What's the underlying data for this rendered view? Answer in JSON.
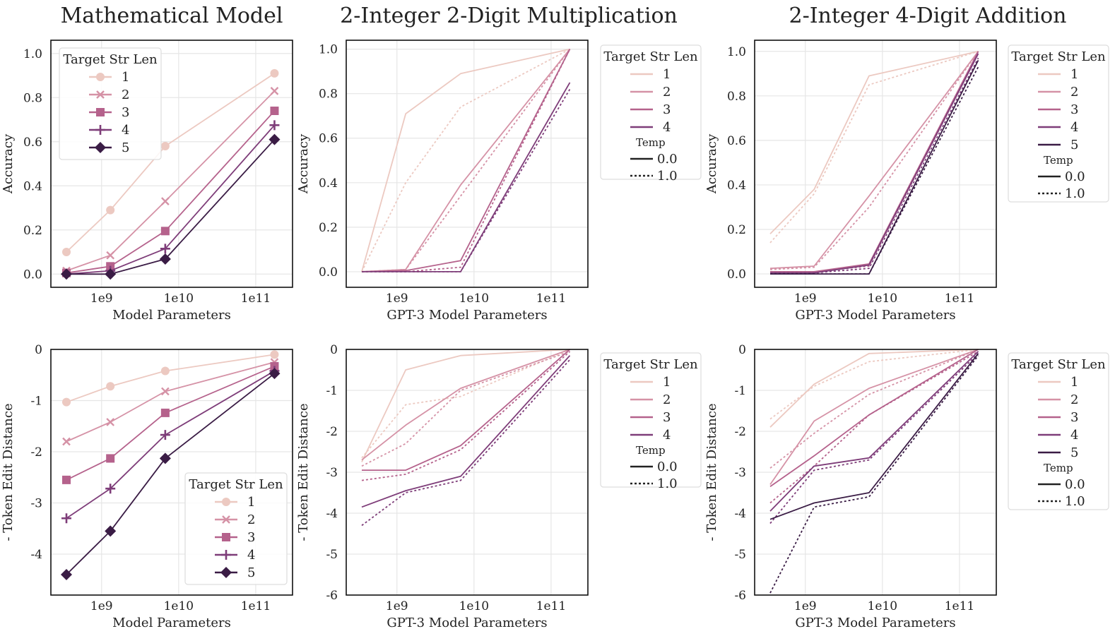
{
  "colors": {
    "len1": "#ecc9c1",
    "len2": "#d592a6",
    "len3": "#b5628c",
    "len4": "#7e3d79",
    "len5": "#3a1c45",
    "grid": "#e6e6e6",
    "axis": "#111111"
  },
  "column_titles": [
    "Mathematical Model",
    "2-Integer 2-Digit Multiplication",
    "2-Integer 4-Digit Addition"
  ],
  "chart_data": [
    {
      "id": "math-accuracy",
      "type": "line",
      "xscale": "log",
      "xlabel": "Model Parameters",
      "ylabel": "Accuracy",
      "xlim": [
        220000000.0,
        300000000000.0
      ],
      "ylim": [
        -0.06,
        1.06
      ],
      "xticks": [
        "1e9",
        "1e10",
        "1e11"
      ],
      "yticks": [
        "0.0",
        "0.2",
        "0.4",
        "0.6",
        "0.8",
        "1.0"
      ],
      "markers": true,
      "legend": {
        "title": "Target Str Len",
        "position": "upper-left",
        "entries": [
          "1",
          "2",
          "3",
          "4",
          "5"
        ]
      },
      "x": [
        350000000.0,
        1300000000.0,
        6700000000.0,
        175000000000.0
      ],
      "series": [
        {
          "name": "1",
          "marker": "circle",
          "values": [
            0.1,
            0.29,
            0.58,
            0.91
          ]
        },
        {
          "name": "2",
          "marker": "x",
          "values": [
            0.015,
            0.085,
            0.33,
            0.83
          ]
        },
        {
          "name": "3",
          "marker": "square",
          "values": [
            0.005,
            0.035,
            0.195,
            0.74
          ]
        },
        {
          "name": "4",
          "marker": "plus",
          "values": [
            0.0,
            0.015,
            0.115,
            0.675
          ]
        },
        {
          "name": "5",
          "marker": "diamond",
          "values": [
            0.0,
            0.0,
            0.068,
            0.61
          ]
        }
      ]
    },
    {
      "id": "mult-accuracy",
      "type": "line",
      "xscale": "log",
      "xlabel": "GPT-3 Model Parameters",
      "ylabel": "Accuracy",
      "xlim": [
        220000000.0,
        300000000000.0
      ],
      "ylim": [
        -0.07,
        1.04
      ],
      "xticks": [
        "1e9",
        "1e10",
        "1e11"
      ],
      "yticks": [
        "0.0",
        "0.2",
        "0.4",
        "0.6",
        "0.8",
        "1.0"
      ],
      "legend": {
        "title": "Target Str Len",
        "position": "outside-right",
        "entries": [
          "1",
          "2",
          "3",
          "4"
        ],
        "temp_title": "Temp",
        "temp_entries": [
          "0.0",
          "1.0"
        ]
      },
      "x": [
        350000000.0,
        1300000000.0,
        6700000000.0,
        175000000000.0
      ],
      "series": [
        {
          "name": "1",
          "temp": "0.0",
          "values": [
            0.0,
            0.71,
            0.89,
            1.0
          ]
        },
        {
          "name": "1",
          "temp": "1.0",
          "values": [
            0.0,
            0.4,
            0.74,
            1.0
          ]
        },
        {
          "name": "2",
          "temp": "0.0",
          "values": [
            0.0,
            0.01,
            0.39,
            1.0
          ]
        },
        {
          "name": "2",
          "temp": "1.0",
          "values": [
            0.0,
            0.01,
            0.34,
            1.0
          ]
        },
        {
          "name": "3",
          "temp": "0.0",
          "values": [
            0.0,
            0.005,
            0.05,
            1.0
          ]
        },
        {
          "name": "3",
          "temp": "1.0",
          "values": [
            0.0,
            0.0,
            0.02,
            1.0
          ]
        },
        {
          "name": "4",
          "temp": "0.0",
          "values": [
            0.0,
            0.0,
            0.0,
            0.85
          ]
        },
        {
          "name": "4",
          "temp": "1.0",
          "values": [
            0.0,
            0.0,
            0.0,
            0.82
          ]
        }
      ]
    },
    {
      "id": "add-accuracy",
      "type": "line",
      "xscale": "log",
      "xlabel": "GPT-3 Model Parameters",
      "ylabel": "Accuracy",
      "xlim": [
        220000000.0,
        300000000000.0
      ],
      "ylim": [
        -0.06,
        1.05
      ],
      "xticks": [
        "1e9",
        "1e10",
        "1e11"
      ],
      "yticks": [
        "0.0",
        "0.2",
        "0.4",
        "0.6",
        "0.8",
        "1.0"
      ],
      "legend": {
        "title": "Target Str Len",
        "position": "outside-right",
        "entries": [
          "1",
          "2",
          "3",
          "4",
          "5"
        ],
        "temp_title": "Temp",
        "temp_entries": [
          "0.0",
          "1.0"
        ]
      },
      "x": [
        350000000.0,
        1300000000.0,
        6700000000.0,
        175000000000.0
      ],
      "series": [
        {
          "name": "1",
          "temp": "0.0",
          "values": [
            0.18,
            0.38,
            0.89,
            1.0
          ]
        },
        {
          "name": "1",
          "temp": "1.0",
          "values": [
            0.14,
            0.36,
            0.85,
            1.0
          ]
        },
        {
          "name": "2",
          "temp": "0.0",
          "values": [
            0.025,
            0.035,
            0.35,
            1.0
          ]
        },
        {
          "name": "2",
          "temp": "1.0",
          "values": [
            0.02,
            0.03,
            0.3,
            1.0
          ]
        },
        {
          "name": "3",
          "temp": "0.0",
          "values": [
            0.01,
            0.01,
            0.045,
            1.0
          ]
        },
        {
          "name": "3",
          "temp": "1.0",
          "values": [
            0.005,
            0.01,
            0.035,
            0.99
          ]
        },
        {
          "name": "4",
          "temp": "0.0",
          "values": [
            0.005,
            0.005,
            0.04,
            0.99
          ]
        },
        {
          "name": "4",
          "temp": "1.0",
          "values": [
            0.0,
            0.005,
            0.025,
            0.97
          ]
        },
        {
          "name": "5",
          "temp": "0.0",
          "values": [
            0.0,
            0.0,
            0.0,
            0.96
          ]
        },
        {
          "name": "5",
          "temp": "1.0",
          "values": [
            0.0,
            0.0,
            0.0,
            0.93
          ]
        }
      ]
    },
    {
      "id": "math-ted",
      "type": "line",
      "xscale": "log",
      "xlabel": "Model Parameters",
      "ylabel": "- Token Edit Distance",
      "xlim": [
        220000000.0,
        300000000000.0
      ],
      "ylim": [
        -4.8,
        0.0
      ],
      "xticks": [
        "1e9",
        "1e10",
        "1e11"
      ],
      "yticks": [
        "0",
        "-1",
        "-2",
        "-3",
        "-4"
      ],
      "markers": true,
      "legend": {
        "title": "Target Str Len",
        "position": "lower-right",
        "entries": [
          "1",
          "2",
          "3",
          "4",
          "5"
        ]
      },
      "x": [
        350000000.0,
        1300000000.0,
        6700000000.0,
        175000000000.0
      ],
      "series": [
        {
          "name": "1",
          "marker": "circle",
          "values": [
            -1.03,
            -0.72,
            -0.42,
            -0.1
          ]
        },
        {
          "name": "2",
          "marker": "x",
          "values": [
            -1.8,
            -1.42,
            -0.82,
            -0.25
          ]
        },
        {
          "name": "3",
          "marker": "square",
          "values": [
            -2.55,
            -2.13,
            -1.24,
            -0.33
          ]
        },
        {
          "name": "4",
          "marker": "plus",
          "values": [
            -3.3,
            -2.72,
            -1.67,
            -0.42
          ]
        },
        {
          "name": "5",
          "marker": "diamond",
          "values": [
            -4.4,
            -3.55,
            -2.13,
            -0.47
          ]
        }
      ]
    },
    {
      "id": "mult-ted",
      "type": "line",
      "xscale": "log",
      "xlabel": "GPT-3 Model Parameters",
      "ylabel": "- Token Edit Distance",
      "xlim": [
        220000000.0,
        300000000000.0
      ],
      "ylim": [
        -6.0,
        0.0
      ],
      "xticks": [
        "1e9",
        "1e10",
        "1e11"
      ],
      "yticks": [
        "0",
        "-1",
        "-2",
        "-3",
        "-4",
        "-5",
        "-6"
      ],
      "legend": {
        "title": "Target Str Len",
        "position": "outside-right",
        "entries": [
          "1",
          "2",
          "3",
          "4"
        ],
        "temp_title": "Temp",
        "temp_entries": [
          "0.0",
          "1.0"
        ]
      },
      "x": [
        350000000.0,
        1300000000.0,
        6700000000.0,
        175000000000.0
      ],
      "series": [
        {
          "name": "1",
          "temp": "0.0",
          "values": [
            -2.75,
            -0.5,
            -0.15,
            0.0
          ]
        },
        {
          "name": "1",
          "temp": "1.0",
          "values": [
            -2.65,
            -1.35,
            -1.15,
            0.0
          ]
        },
        {
          "name": "2",
          "temp": "0.0",
          "values": [
            -2.7,
            -1.85,
            -0.95,
            0.0
          ]
        },
        {
          "name": "2",
          "temp": "1.0",
          "values": [
            -2.85,
            -2.3,
            -1.0,
            -0.05
          ]
        },
        {
          "name": "3",
          "temp": "0.0",
          "values": [
            -2.95,
            -2.95,
            -2.35,
            0.0
          ]
        },
        {
          "name": "3",
          "temp": "1.0",
          "values": [
            -3.2,
            -3.05,
            -2.45,
            -0.05
          ]
        },
        {
          "name": "4",
          "temp": "0.0",
          "values": [
            -3.85,
            -3.45,
            -3.1,
            -0.15
          ]
        },
        {
          "name": "4",
          "temp": "1.0",
          "values": [
            -4.3,
            -3.5,
            -3.2,
            -0.25
          ]
        }
      ]
    },
    {
      "id": "add-ted",
      "type": "line",
      "xscale": "log",
      "xlabel": "GPT-3 Model Parameters",
      "ylabel": "- Token Edit Distance",
      "xlim": [
        220000000.0,
        300000000000.0
      ],
      "ylim": [
        -6.0,
        0.0
      ],
      "xticks": [
        "1e9",
        "1e10",
        "1e11"
      ],
      "yticks": [
        "0",
        "-1",
        "-2",
        "-3",
        "-4",
        "-5",
        "-6"
      ],
      "legend": {
        "title": "Target Str Len",
        "position": "outside-right",
        "entries": [
          "1",
          "2",
          "3",
          "4",
          "5"
        ],
        "temp_title": "Temp",
        "temp_entries": [
          "0.0",
          "1.0"
        ]
      },
      "x": [
        350000000.0,
        1300000000.0,
        6700000000.0,
        175000000000.0
      ],
      "series": [
        {
          "name": "1",
          "temp": "0.0",
          "values": [
            -1.9,
            -0.85,
            -0.1,
            0.0
          ]
        },
        {
          "name": "1",
          "temp": "1.0",
          "values": [
            -1.7,
            -0.9,
            -0.3,
            0.0
          ]
        },
        {
          "name": "2",
          "temp": "0.0",
          "values": [
            -3.3,
            -1.75,
            -0.95,
            0.0
          ]
        },
        {
          "name": "2",
          "temp": "1.0",
          "values": [
            -2.9,
            -2.05,
            -1.1,
            0.0
          ]
        },
        {
          "name": "3",
          "temp": "0.0",
          "values": [
            -3.35,
            -2.6,
            -1.6,
            0.0
          ]
        },
        {
          "name": "3",
          "temp": "1.0",
          "values": [
            -3.75,
            -2.85,
            -1.6,
            -0.05
          ]
        },
        {
          "name": "4",
          "temp": "0.0",
          "values": [
            -3.95,
            -2.85,
            -2.65,
            -0.05
          ]
        },
        {
          "name": "4",
          "temp": "1.0",
          "values": [
            -4.25,
            -2.95,
            -2.7,
            -0.1
          ]
        },
        {
          "name": "5",
          "temp": "0.0",
          "values": [
            -4.15,
            -3.75,
            -3.5,
            -0.1
          ]
        },
        {
          "name": "5",
          "temp": "1.0",
          "values": [
            -5.95,
            -3.85,
            -3.6,
            -0.15
          ]
        }
      ]
    }
  ]
}
